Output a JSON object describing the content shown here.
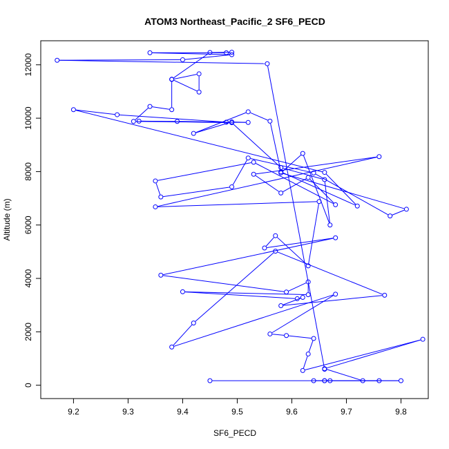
{
  "chart_data": {
    "type": "line",
    "title": "ATOM3 Northeast_Pacific_2 SF6_PECD",
    "xlabel": "SF6_PECD",
    "ylabel": "Altitude (m)",
    "xlim": [
      9.14,
      9.85
    ],
    "ylim": [
      -500,
      12900
    ],
    "x_ticks": [
      "9.2",
      "9.3",
      "9.4",
      "9.5",
      "9.6",
      "9.7",
      "9.8"
    ],
    "y_ticks": [
      "0",
      "2000",
      "4000",
      "6000",
      "8000",
      "10000",
      "12000"
    ],
    "grid": false,
    "legend": "none",
    "marker": "open-circle",
    "color": "#0000ff",
    "series": [
      {
        "x": [
          9.45,
          9.66,
          9.8,
          9.67,
          9.64,
          9.66,
          9.76,
          9.73,
          9.66,
          9.84,
          9.62,
          9.63,
          9.64,
          9.59,
          9.56,
          9.68,
          9.38,
          9.42,
          9.57,
          9.77,
          9.58,
          9.62,
          9.61,
          9.4,
          9.63,
          9.63,
          9.59,
          9.36,
          9.68,
          9.55,
          9.57,
          9.63,
          9.65,
          9.35,
          9.76,
          9.53,
          9.58,
          9.63,
          9.68,
          9.53,
          9.35,
          9.36,
          9.49,
          9.52,
          9.64,
          9.78,
          9.81,
          9.58,
          9.62,
          9.67,
          9.66,
          9.58,
          9.49,
          9.32,
          9.39,
          9.48,
          9.28,
          9.2,
          9.66,
          9.72,
          9.58,
          9.56,
          9.52,
          9.42,
          9.49,
          9.52,
          9.31,
          9.34,
          9.38,
          9.38,
          9.43,
          9.43,
          9.38,
          9.45,
          9.49,
          9.48,
          9.34,
          9.49,
          9.4,
          9.17,
          9.555,
          9.66
        ]
      }
    ],
    "y": [
      170,
      170,
      170,
      170,
      170,
      170,
      170,
      170,
      620,
      1720,
      550,
      1170,
      1750,
      1860,
      1920,
      3410,
      1430,
      2330,
      5020,
      3370,
      2980,
      3290,
      3240,
      3500,
      3390,
      3870,
      3490,
      4120,
      5520,
      5140,
      5600,
      4470,
      6880,
      6680,
      8560,
      7900,
      7200,
      7780,
      6760,
      8350,
      7650,
      7050,
      7430,
      8510,
      7950,
      6340,
      6590,
      7950,
      8680,
      6000,
      7700,
      8150,
      9830,
      9890,
      9880,
      9850,
      10130,
      10320,
      7970,
      6710,
      7990,
      9890,
      10240,
      9430,
      9860,
      9840,
      9880,
      10440,
      10320,
      11450,
      11660,
      10980,
      11460,
      12460,
      12470,
      12450,
      12450,
      12380,
      12190,
      12170,
      12040,
      600
    ]
  }
}
